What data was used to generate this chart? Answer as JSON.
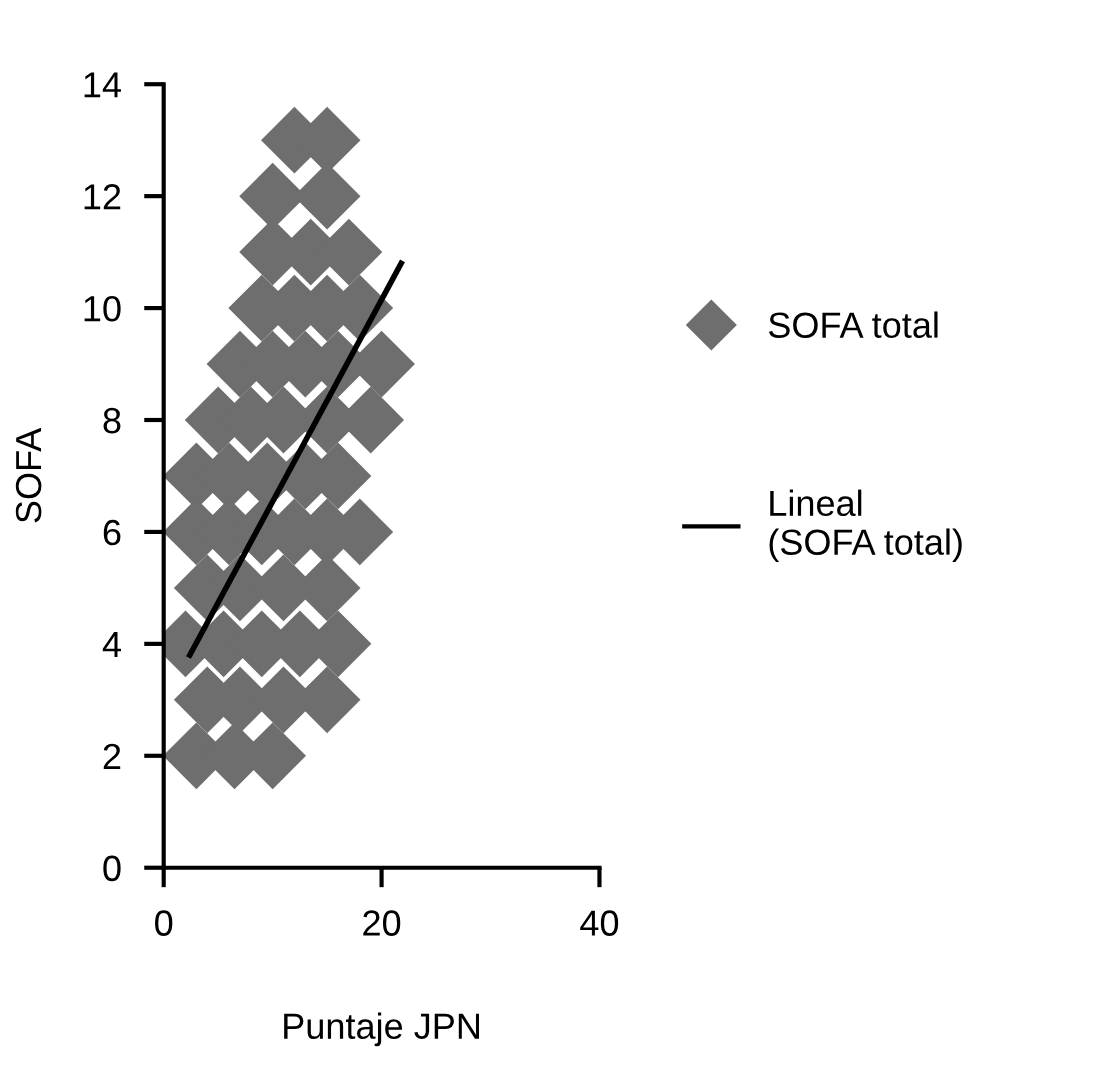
{
  "chart_data": {
    "type": "scatter",
    "xlabel": "Puntaje JPN",
    "ylabel": "SOFA",
    "xlim": [
      0,
      40
    ],
    "ylim": [
      0,
      14
    ],
    "xticks": [
      0,
      20,
      40
    ],
    "yticks": [
      0,
      2,
      4,
      6,
      8,
      10,
      12,
      14
    ],
    "grid": false,
    "legend": "right",
    "marker": "diamond",
    "series": [
      {
        "name": "SOFA total",
        "color": "#6e6e6e",
        "x": [
          12,
          15,
          10,
          15,
          10,
          13.5,
          17,
          9,
          12,
          15,
          18,
          7,
          10,
          13,
          16,
          20,
          5,
          8,
          11,
          15,
          19,
          3,
          6,
          9.5,
          13,
          16,
          3,
          6,
          9,
          12,
          15,
          18,
          4,
          7,
          11,
          15,
          2,
          5.5,
          9,
          12.5,
          16,
          4,
          7,
          11,
          15,
          3,
          6.5,
          10
        ],
        "values": [
          13,
          13,
          12,
          12,
          11,
          11,
          11,
          10,
          10,
          10,
          10,
          9,
          9,
          9,
          9,
          9,
          8,
          8,
          8,
          8,
          8,
          7,
          7,
          7,
          7,
          7,
          6,
          6,
          6,
          6,
          6,
          6,
          5,
          5,
          5,
          5,
          4,
          4,
          4,
          4,
          4,
          3,
          3,
          3,
          3,
          2,
          2,
          2
        ]
      },
      {
        "name": "Lineal\n(SOFA total)",
        "type": "line",
        "color": "#000000",
        "line_style": "solid",
        "marker": "none",
        "x": [
          2.4,
          21.8
        ],
        "values": [
          3.8,
          10.8
        ]
      }
    ]
  }
}
